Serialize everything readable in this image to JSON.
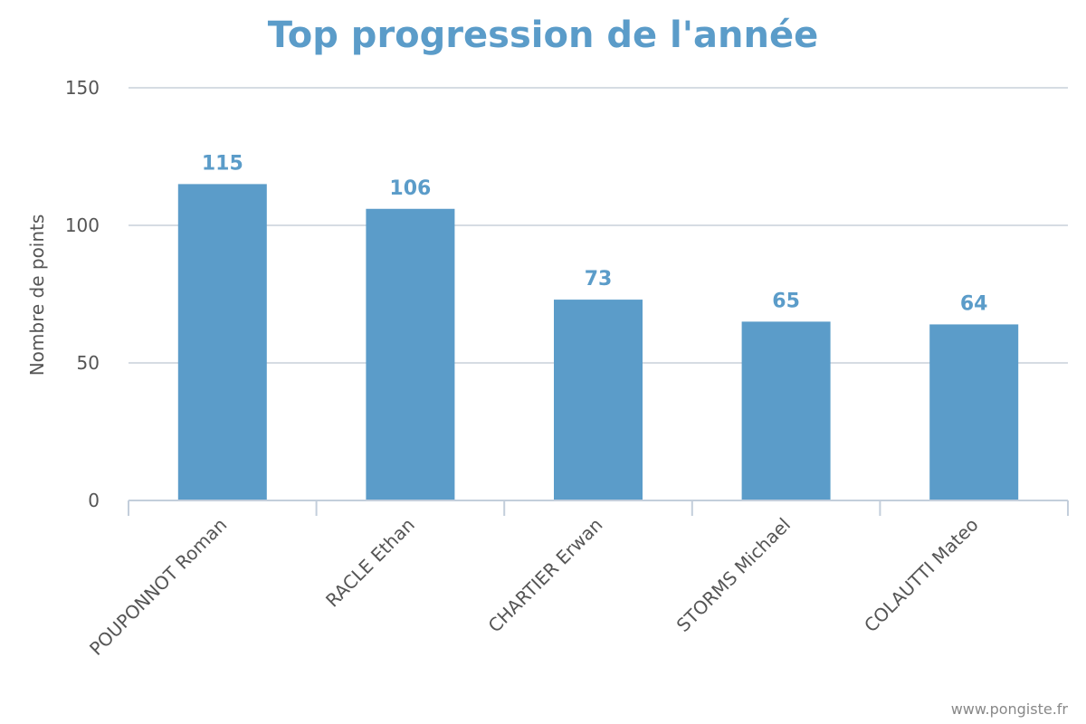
{
  "chart_data": {
    "type": "bar",
    "title": "Top progression de l'année",
    "xlabel": "",
    "ylabel": "Nombre de points",
    "categories": [
      "POUPONNOT Roman",
      "RACLE Ethan",
      "CHARTIER Erwan",
      "STORMS Michael",
      "COLAUTTI Mateo"
    ],
    "values": [
      115,
      106,
      73,
      65,
      64
    ],
    "data_labels": [
      "115",
      "106",
      "73",
      "65",
      "64"
    ],
    "y_ticks": [
      0,
      50,
      100,
      150
    ],
    "y_tick_labels": [
      "0",
      "50",
      "100",
      "150"
    ],
    "ylim": [
      0,
      150
    ],
    "grid": true,
    "legend": "none",
    "colors": {
      "bar": "#5b9cc9",
      "title": "#5b9cc9",
      "data_label": "#5b9cc9",
      "axis_text": "#555555",
      "grid": "#d6dce3"
    }
  },
  "credit": "www.pongiste.fr"
}
